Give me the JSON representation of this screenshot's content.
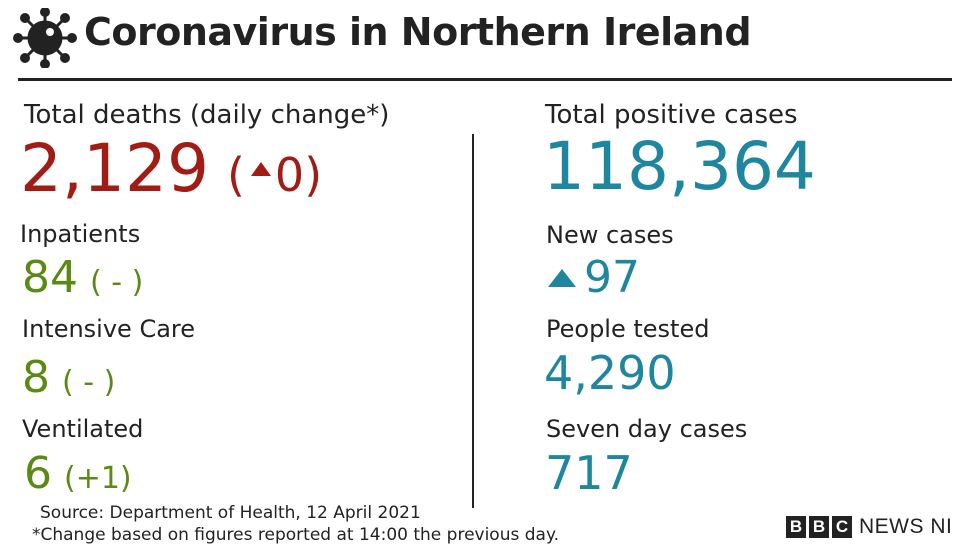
{
  "header": {
    "title": "Coronavirus in Northern Ireland",
    "icon": "coronavirus-icon"
  },
  "left": {
    "deaths": {
      "label": "Total deaths (daily change*)",
      "value": "2,129",
      "change_open": "(",
      "change": "0",
      "change_close": ")"
    },
    "inpatients": {
      "label": "Inpatients",
      "value": "84",
      "change": "( - )"
    },
    "intensive_care": {
      "label": "Intensive Care",
      "value": "8",
      "change": "( - )"
    },
    "ventilated": {
      "label": "Ventilated",
      "value": "6",
      "change": "(+1)"
    }
  },
  "right": {
    "positive_cases": {
      "label": "Total positive cases",
      "value": "118,364"
    },
    "new_cases": {
      "label": "New cases",
      "value": "97"
    },
    "people_tested": {
      "label": "People tested",
      "value": "4,290"
    },
    "seven_day": {
      "label": "Seven day cases",
      "value": "717"
    }
  },
  "footer": {
    "source": "Source: Department of Health, 12 April 2021",
    "note": "*Change based on figures reported at 14:00 the previous day."
  },
  "brand": {
    "b1": "B",
    "b2": "B",
    "b3": "C",
    "news": "NEWS NI"
  },
  "colors": {
    "red": "#a01c14",
    "green": "#5a8a14",
    "blue": "#1f86a0",
    "ink": "#222222"
  }
}
